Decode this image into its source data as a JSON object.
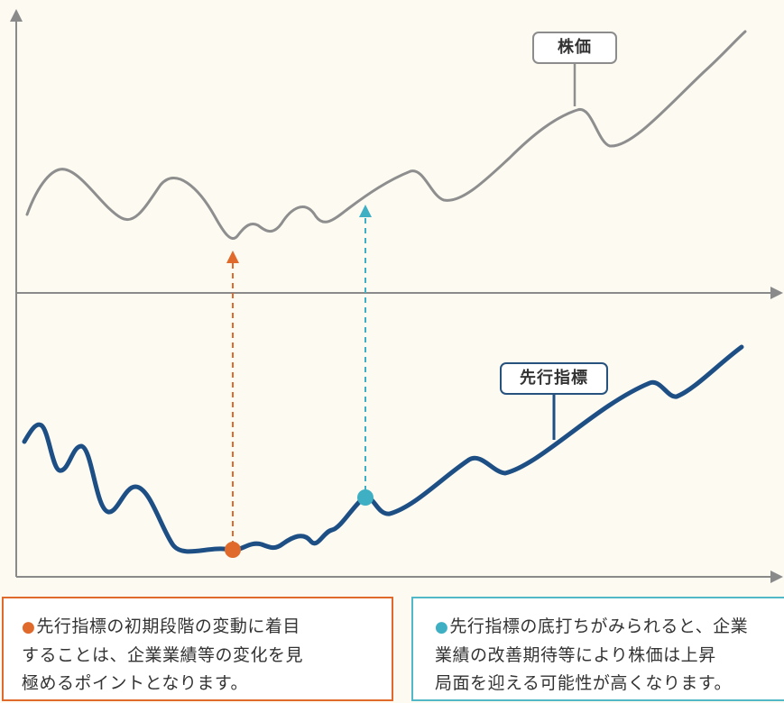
{
  "labels": {
    "stock_price": "株価",
    "leading_indicator": "先行指標"
  },
  "callouts": {
    "orange": {
      "bullet": "●",
      "lines": [
        "先行指標の初期段階の変動に着目",
        "することは、企業業績等の変化を見",
        "極めるポイントとなります。"
      ]
    },
    "teal": {
      "bullet": "●",
      "lines": [
        "先行指標の底打ちがみられると、企業",
        "業績の改善期待等により株価は上昇",
        "局面を迎える可能性が高くなります。"
      ]
    }
  },
  "colors": {
    "stock_line": "#8e8e8e",
    "indicator_line": "#1d4f85",
    "orange_accent": "#e06a2c",
    "teal_accent": "#3fb0c3",
    "axis": "#8a8a8a"
  },
  "icons": {
    "bullet": "circle"
  }
}
